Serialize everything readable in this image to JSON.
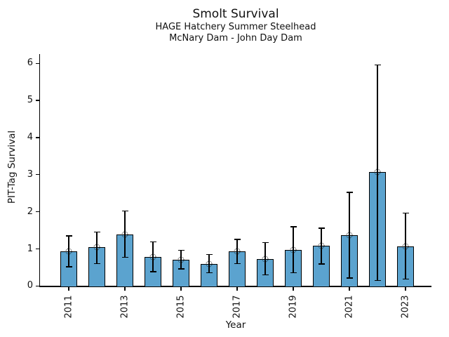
{
  "chart_data": {
    "type": "bar",
    "title": "Smolt Survival",
    "subtitle1": "HAGE Hatchery Summer Steelhead",
    "subtitle2": "McNary Dam - John Day Dam",
    "xlabel": "Year",
    "ylabel": "PIT-Tag Survival",
    "categories": [
      2011,
      2012,
      2013,
      2014,
      2015,
      2016,
      2017,
      2018,
      2019,
      2020,
      2021,
      2022,
      2023
    ],
    "values": [
      0.93,
      1.04,
      1.39,
      0.79,
      0.71,
      0.6,
      0.94,
      0.73,
      0.98,
      1.08,
      1.37,
      3.07,
      1.07
    ],
    "error_low": [
      0.52,
      0.6,
      0.77,
      0.39,
      0.46,
      0.36,
      0.6,
      0.3,
      0.36,
      0.59,
      0.22,
      0.15,
      0.19
    ],
    "error_high": [
      1.35,
      1.45,
      2.02,
      1.19,
      0.96,
      0.85,
      1.26,
      1.17,
      1.6,
      1.56,
      2.52,
      5.96,
      1.97
    ],
    "yticks": [
      0,
      1,
      2,
      3,
      4,
      5,
      6
    ],
    "x_tick_labels": [
      "2011",
      "2013",
      "2015",
      "2017",
      "2019",
      "2021",
      "2023"
    ],
    "ylim": [
      0,
      6.25
    ],
    "grid": false,
    "legend": false,
    "styles": {
      "bar_fill": "#5BA3CF",
      "bar_edge": "#000000",
      "error_color": "#000000",
      "marker": "open-circle-dotted",
      "background": "#FFFFFF"
    }
  }
}
